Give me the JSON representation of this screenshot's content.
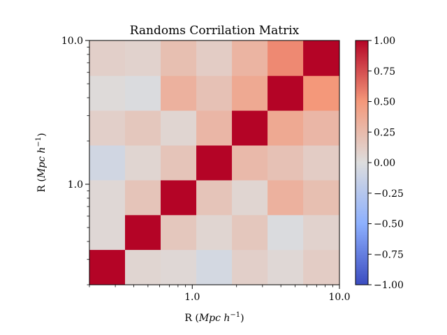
{
  "chart_data": {
    "type": "heatmap",
    "title": "Randoms Corrilation Matrix",
    "xlabel": {
      "prefix": "R",
      "unit": "Mpc h",
      "exp": "−1"
    },
    "ylabel": {
      "prefix": "R",
      "unit": "Mpc h",
      "exp": "−1"
    },
    "x_scale": "log",
    "y_scale": "log",
    "xlim": [
      0.2,
      10.0
    ],
    "ylim": [
      0.2,
      10.0
    ],
    "x_tick_labels": [
      {
        "value": 1.0,
        "label": "1.0"
      },
      {
        "value": 10.0,
        "label": "10.0"
      }
    ],
    "y_tick_labels": [
      {
        "value": 1.0,
        "label": "1.0"
      },
      {
        "value": 10.0,
        "label": "10.0"
      }
    ],
    "bin_edges": [
      0.2,
      0.3492,
      0.6098,
      1.0649,
      1.8594,
      3.2468,
      5.6695,
      10.0
    ],
    "colormap": "coolwarm",
    "colorbar": {
      "vmin": -1.0,
      "vmax": 1.0,
      "tick_labels": [
        "1.00",
        "0.75",
        "0.50",
        "0.25",
        "0.00",
        "−0.25",
        "−0.50",
        "−0.75",
        "−1.00"
      ],
      "tick_values": [
        1.0,
        0.75,
        0.5,
        0.25,
        0.0,
        -0.25,
        -0.5,
        -0.75,
        -1.0
      ]
    },
    "matrix": [
      [
        0.1,
        0.08,
        0.22,
        0.12,
        0.3,
        0.55,
        1.0
      ],
      [
        0.02,
        -0.02,
        0.32,
        0.2,
        0.38,
        1.0,
        0.5
      ],
      [
        0.1,
        0.16,
        0.06,
        0.28,
        1.0,
        0.38,
        0.28
      ],
      [
        -0.08,
        0.06,
        0.18,
        1.0,
        0.26,
        0.2,
        0.12
      ],
      [
        0.04,
        0.18,
        1.0,
        0.18,
        0.06,
        0.32,
        0.22
      ],
      [
        0.04,
        1.0,
        0.16,
        0.06,
        0.16,
        -0.02,
        0.08
      ],
      [
        1.0,
        0.06,
        0.04,
        -0.06,
        0.1,
        0.04,
        0.12
      ]
    ]
  }
}
